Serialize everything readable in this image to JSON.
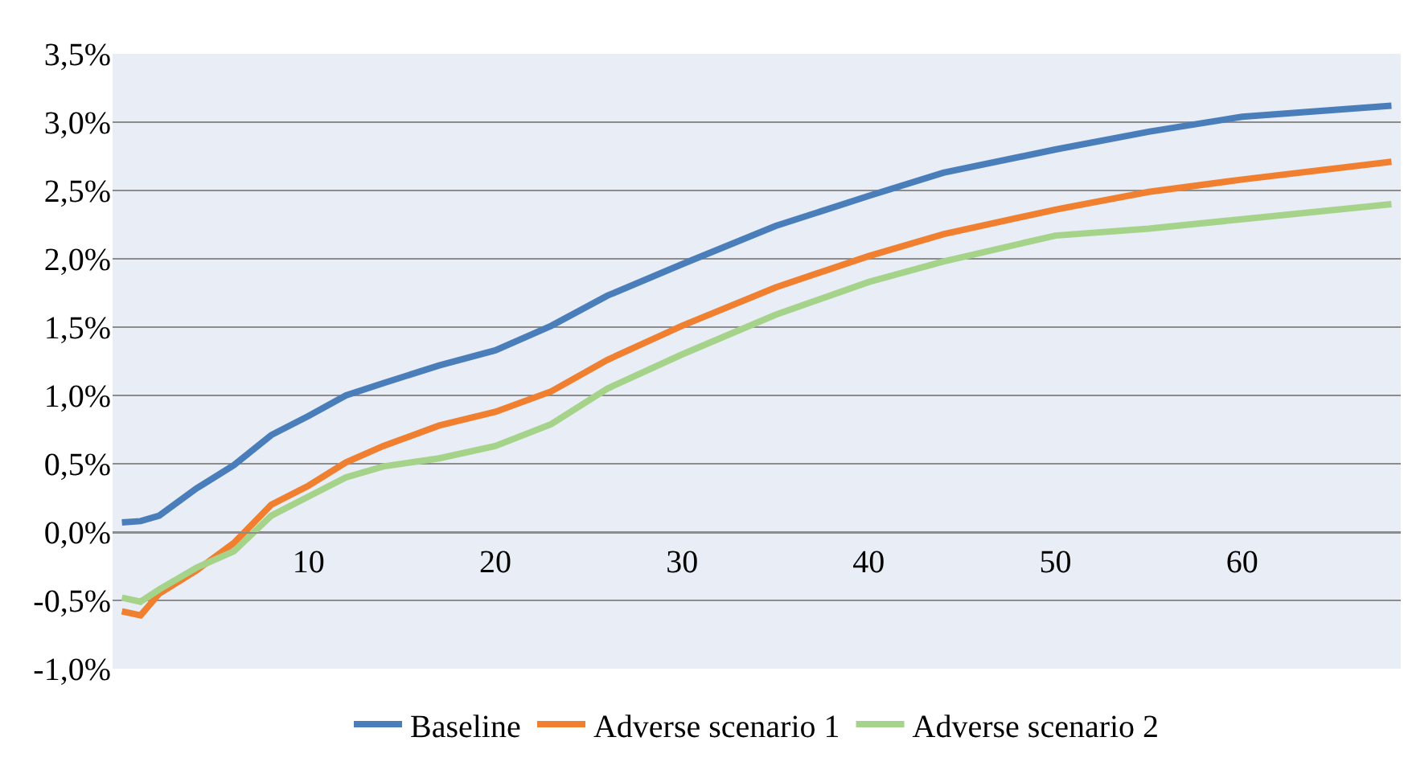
{
  "chart_data": {
    "type": "line",
    "x": [
      0,
      1,
      2,
      4,
      6,
      8,
      10,
      12,
      14,
      17,
      20,
      23,
      26,
      30,
      35,
      40,
      44,
      50,
      55,
      60,
      68
    ],
    "series": [
      {
        "name": "Baseline",
        "color": "#4a7ebb",
        "values": [
          0.07,
          0.08,
          0.12,
          0.32,
          0.49,
          0.71,
          0.85,
          1.0,
          1.09,
          1.22,
          1.33,
          1.51,
          1.73,
          1.96,
          2.24,
          2.46,
          2.63,
          2.8,
          2.93,
          3.04,
          3.12
        ]
      },
      {
        "name": "Adverse scenario 1",
        "color": "#f07f30",
        "values": [
          -0.58,
          -0.61,
          -0.45,
          -0.28,
          -0.08,
          0.2,
          0.34,
          0.51,
          0.63,
          0.78,
          0.88,
          1.03,
          1.26,
          1.51,
          1.79,
          2.02,
          2.18,
          2.36,
          2.49,
          2.58,
          2.71
        ]
      },
      {
        "name": "Adverse scenario 2",
        "color": "#a6d38a",
        "values": [
          -0.48,
          -0.51,
          -0.42,
          -0.26,
          -0.14,
          0.12,
          0.26,
          0.4,
          0.48,
          0.54,
          0.63,
          0.79,
          1.05,
          1.3,
          1.59,
          1.83,
          1.98,
          2.17,
          2.22,
          2.29,
          2.4
        ]
      }
    ],
    "xlim": [
      -0.5,
      68.5
    ],
    "xticks": [
      10,
      20,
      30,
      40,
      50,
      60
    ],
    "ylim": [
      -1.0,
      3.5
    ],
    "yticks": [
      {
        "value": -1.0,
        "label": "-1,0%"
      },
      {
        "value": -0.5,
        "label": "-0,5%"
      },
      {
        "value": 0.0,
        "label": "0,0%"
      },
      {
        "value": 0.5,
        "label": "0,5%"
      },
      {
        "value": 1.0,
        "label": "1,0%"
      },
      {
        "value": 1.5,
        "label": "1,5%"
      },
      {
        "value": 2.0,
        "label": "2,0%"
      },
      {
        "value": 2.5,
        "label": "2,5%"
      },
      {
        "value": 3.0,
        "label": "3,0%"
      },
      {
        "value": 3.5,
        "label": "3,5%"
      }
    ],
    "grid": "y",
    "legend": "bottom",
    "marker": "none",
    "line_style": "solid"
  }
}
